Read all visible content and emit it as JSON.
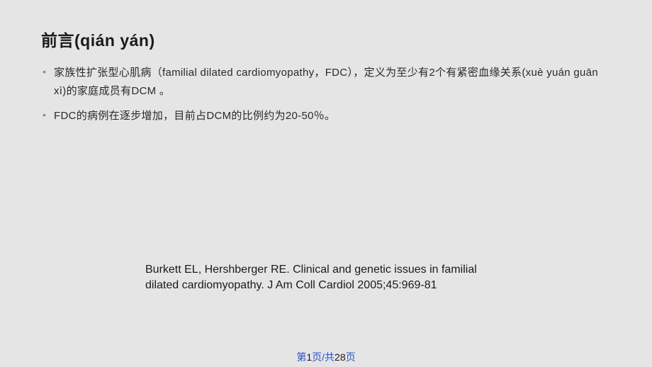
{
  "title": "前言(qián yán)",
  "bullets": [
    "家族性扩张型心肌病（familial dilated cardiomyopathy，FDC），定义为至少有2个有紧密血缘关系(xuè yuán guān xì)的家庭成员有DCM 。",
    "FDC的病例在逐步增加，目前占DCM的比例约为20-50％。"
  ],
  "citation": "Burkett EL, Hershberger RE. Clinical and genetic issues in familial dilated cardiomyopathy. J Am Coll Cardiol 2005;45:969-81",
  "pagination": {
    "prefix": "第",
    "current_outer": "1",
    "mid": "页/共",
    "current_inner": "28",
    "suffix": "页"
  },
  "styling": {
    "background_color": "#e5e5e5",
    "title_fontsize": 23,
    "title_color": "#1a1a1a",
    "bullet_fontsize": 15,
    "bullet_color": "#2a2a2a",
    "bullet_marker_color": "#888888",
    "citation_fontsize": 16,
    "citation_color": "#1a1a1a",
    "page_link_color": "#2952cc",
    "page_text_color": "#1a1a1a",
    "page_fontsize": 14
  }
}
